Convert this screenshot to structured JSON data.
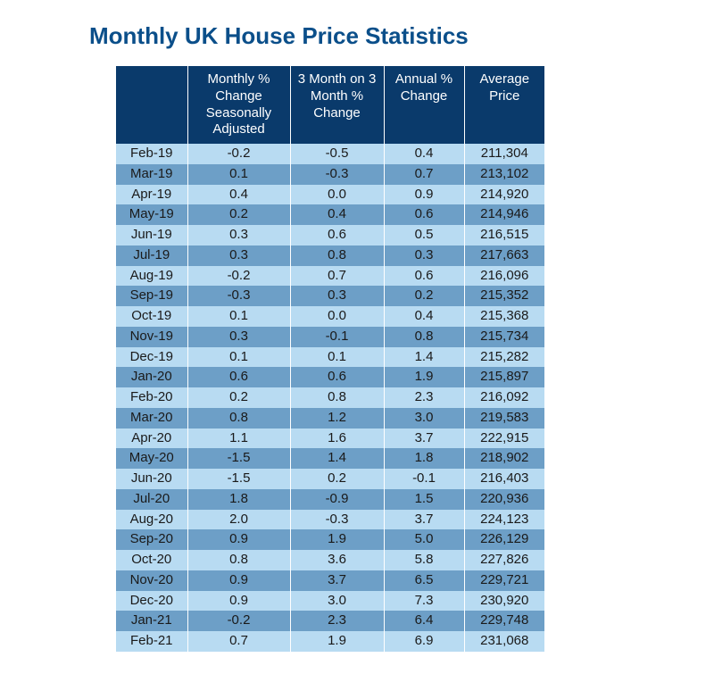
{
  "title": "Monthly UK House Price Statistics",
  "colors": {
    "title": "#0b4f8a",
    "header_bg": "#0a3a6b",
    "header_text": "#ffffff",
    "row_light": "#b8dbf2",
    "row_dark": "#6d9fc7",
    "cell_text": "#1a1a1a",
    "cell_border": "#ffffff",
    "header_border": "#ffffff"
  },
  "table": {
    "columns": [
      "",
      "Monthly % Change Seasonally Adjusted",
      "3 Month on 3 Month % Change",
      "Annual % Change",
      "Average Price"
    ],
    "col_classes": [
      "col-month",
      "col-c1",
      "col-c2",
      "col-c3",
      "col-c4"
    ],
    "rows": [
      [
        "Feb-19",
        "-0.2",
        "-0.5",
        "0.4",
        "211,304"
      ],
      [
        "Mar-19",
        "0.1",
        "-0.3",
        "0.7",
        "213,102"
      ],
      [
        "Apr-19",
        "0.4",
        "0.0",
        "0.9",
        "214,920"
      ],
      [
        "May-19",
        "0.2",
        "0.4",
        "0.6",
        "214,946"
      ],
      [
        "Jun-19",
        "0.3",
        "0.6",
        "0.5",
        "216,515"
      ],
      [
        "Jul-19",
        "0.3",
        "0.8",
        "0.3",
        "217,663"
      ],
      [
        "Aug-19",
        "-0.2",
        "0.7",
        "0.6",
        "216,096"
      ],
      [
        "Sep-19",
        "-0.3",
        "0.3",
        "0.2",
        "215,352"
      ],
      [
        "Oct-19",
        "0.1",
        "0.0",
        "0.4",
        "215,368"
      ],
      [
        "Nov-19",
        "0.3",
        "-0.1",
        "0.8",
        "215,734"
      ],
      [
        "Dec-19",
        "0.1",
        "0.1",
        "1.4",
        "215,282"
      ],
      [
        "Jan-20",
        "0.6",
        "0.6",
        "1.9",
        "215,897"
      ],
      [
        "Feb-20",
        "0.2",
        "0.8",
        "2.3",
        "216,092"
      ],
      [
        "Mar-20",
        "0.8",
        "1.2",
        "3.0",
        "219,583"
      ],
      [
        "Apr-20",
        "1.1",
        "1.6",
        "3.7",
        "222,915"
      ],
      [
        "May-20",
        "-1.5",
        "1.4",
        "1.8",
        "218,902"
      ],
      [
        "Jun-20",
        "-1.5",
        "0.2",
        "-0.1",
        "216,403"
      ],
      [
        "Jul-20",
        "1.8",
        "-0.9",
        "1.5",
        "220,936"
      ],
      [
        "Aug-20",
        "2.0",
        "-0.3",
        "3.7",
        "224,123"
      ],
      [
        "Sep-20",
        "0.9",
        "1.9",
        "5.0",
        "226,129"
      ],
      [
        "Oct-20",
        "0.8",
        "3.6",
        "5.8",
        "227,826"
      ],
      [
        "Nov-20",
        "0.9",
        "3.7",
        "6.5",
        "229,721"
      ],
      [
        "Dec-20",
        "0.9",
        "3.0",
        "7.3",
        "230,920"
      ],
      [
        "Jan-21",
        "-0.2",
        "2.3",
        "6.4",
        "229,748"
      ],
      [
        "Feb-21",
        "0.7",
        "1.9",
        "6.9",
        "231,068"
      ]
    ]
  }
}
